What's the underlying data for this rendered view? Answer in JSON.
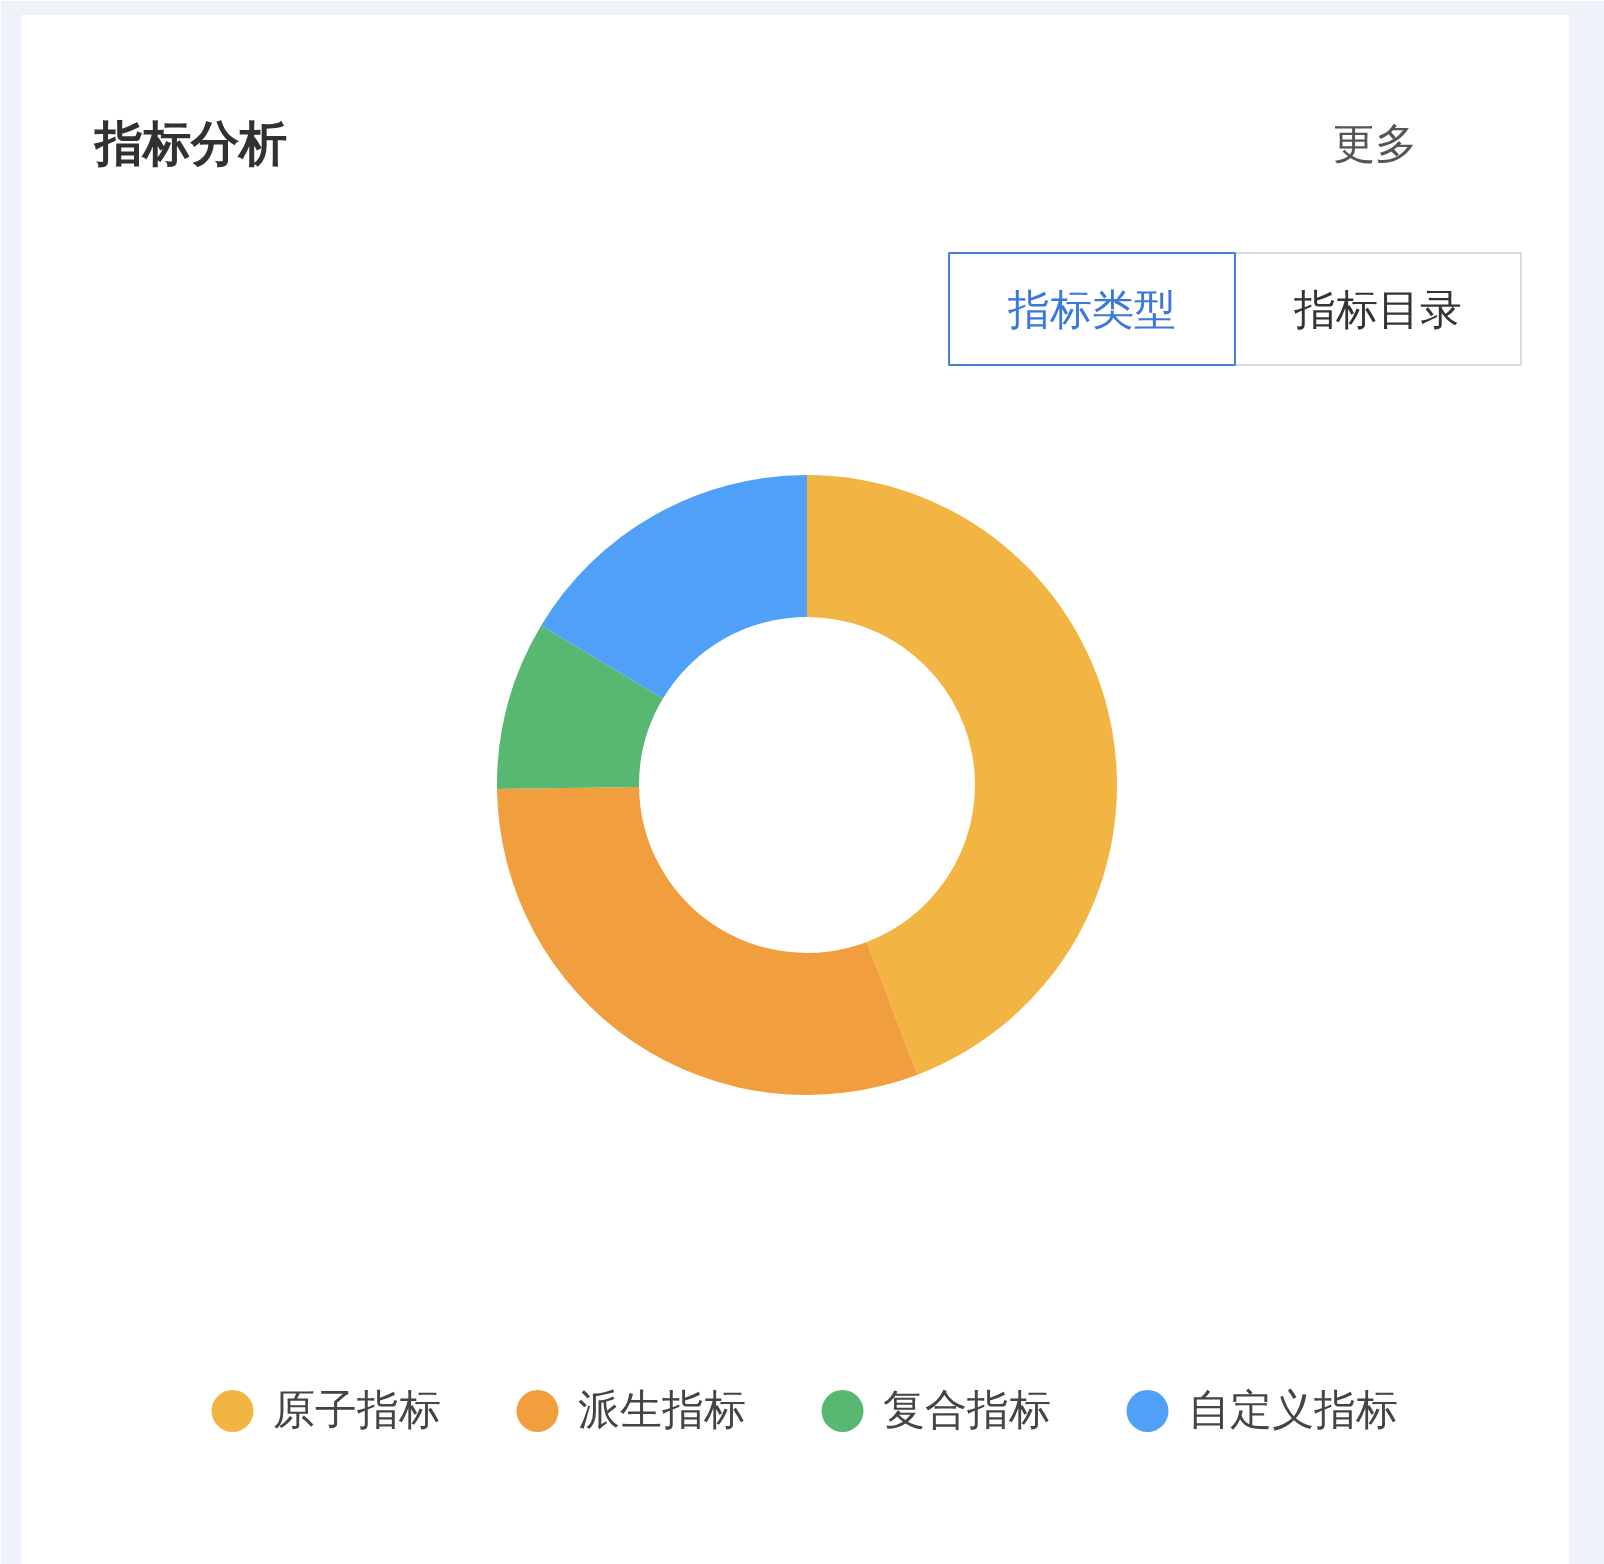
{
  "chart_data": {
    "type": "donut",
    "title": "指标分析",
    "categories": [
      "原子指标",
      "派生指标",
      "复合指标",
      "自定义指标"
    ],
    "values": [
      44.2,
      30.6,
      8.8,
      16.4
    ],
    "colors": [
      "#f2b443",
      "#f19e3e",
      "#58b872",
      "#50a0f8"
    ],
    "legend": "bottom",
    "annotations": [
      "更多",
      "指标类型",
      "指标目录"
    ]
  }
}
